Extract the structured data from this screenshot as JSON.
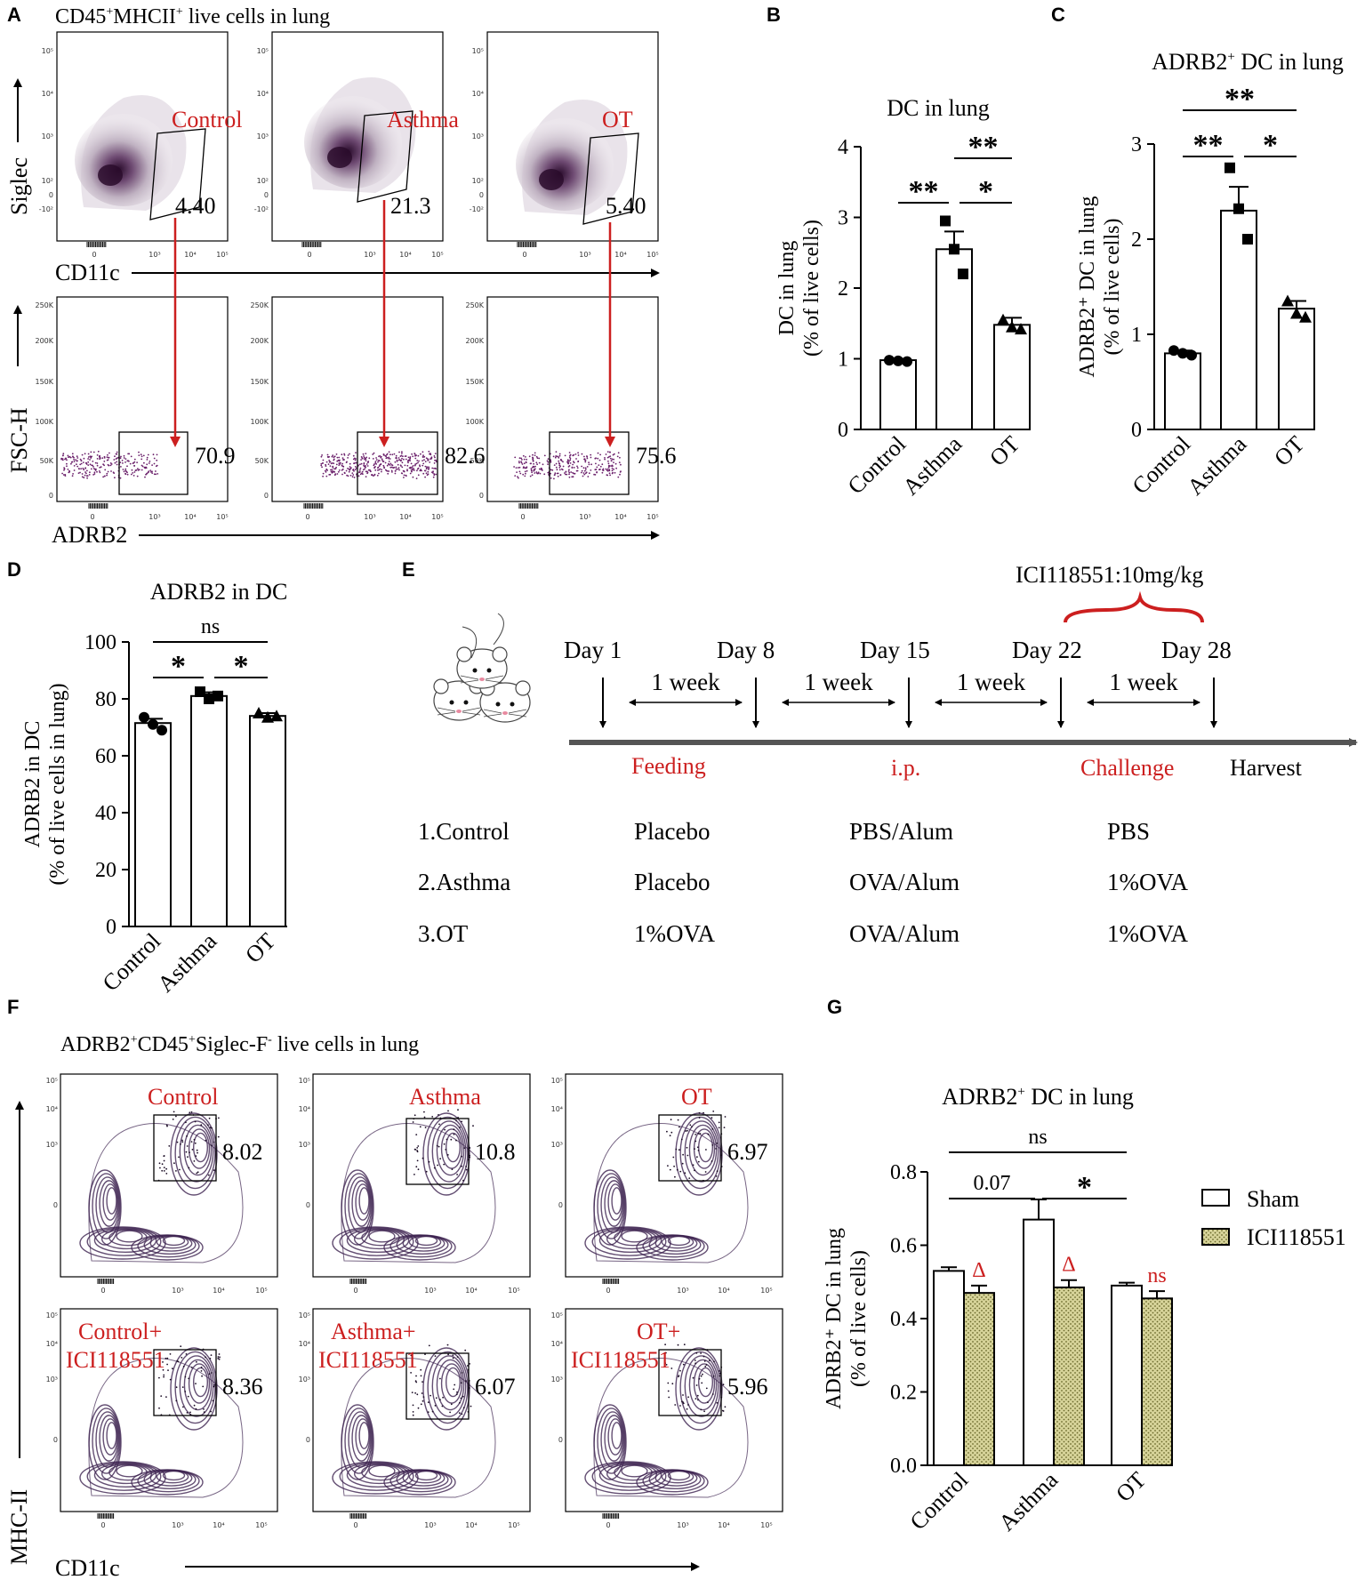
{
  "colors": {
    "red": "#cc1f1f",
    "purple": "#3d2350",
    "gray": "#555555",
    "hatch": "#c9c78a"
  },
  "panel_labels": [
    "A",
    "B",
    "C",
    "D",
    "E",
    "F",
    "G"
  ],
  "panelA": {
    "title_pre": "CD45",
    "title_sup1": "+",
    "title_mid": "MHCII",
    "title_sup2": "+",
    "title_post": " live cells in lung",
    "groups": [
      "Control",
      "Asthma",
      "OT"
    ],
    "siglec_gate": [
      "4.40",
      "21.3",
      "5.40"
    ],
    "adrb2_gate": [
      "70.9",
      "82.6",
      "75.6"
    ],
    "y_top": "Siglec",
    "x_top": "CD11c",
    "y_bottom": "FSC-H",
    "x_bottom": "ADRB2",
    "log_ticks": [
      "10⁵",
      "10⁴",
      "10³",
      "10²",
      "0",
      "-10²"
    ],
    "log_xticks": [
      "0",
      "10³",
      "10⁴",
      "10⁵"
    ],
    "lin_ticks": [
      "250K",
      "200K",
      "150K",
      "100K",
      "50K",
      "0"
    ]
  },
  "chart_data": [
    {
      "id": "B",
      "type": "bar",
      "title": "DC in lung",
      "ylabel": [
        "DC in lung",
        "(% of live cells)"
      ],
      "categories": [
        "Control",
        "Asthma",
        "OT"
      ],
      "values": [
        0.98,
        2.55,
        1.48
      ],
      "errors": [
        0.02,
        0.25,
        0.1
      ],
      "points": [
        [
          0.98,
          0.97,
          0.96
        ],
        [
          2.95,
          2.55,
          2.2
        ],
        [
          1.55,
          1.45,
          1.42
        ]
      ],
      "markers": [
        "circle",
        "square",
        "triangle"
      ],
      "yticks": [
        0,
        1,
        2,
        3,
        4
      ],
      "ylim": [
        0,
        4
      ],
      "sig": [
        {
          "label": "**",
          "from": 1,
          "to": 2,
          "row": 0
        },
        {
          "label": "**",
          "from": 0,
          "to": 1,
          "row": 1
        },
        {
          "label": "*",
          "from": 1,
          "to": 2,
          "row": 1
        }
      ]
    },
    {
      "id": "C",
      "type": "bar",
      "title_pre": "ADRB2",
      "title_sup": "+",
      "title_post": " DC in lung",
      "ylabel": [
        "ADRB2⁺ DC in lung",
        "(% of live cells)"
      ],
      "categories": [
        "Control",
        "Asthma",
        "OT"
      ],
      "values": [
        0.8,
        2.3,
        1.27
      ],
      "errors": [
        0.03,
        0.25,
        0.08
      ],
      "points": [
        [
          0.83,
          0.8,
          0.78
        ],
        [
          2.75,
          2.32,
          2.0
        ],
        [
          1.35,
          1.22,
          1.18
        ]
      ],
      "markers": [
        "circle",
        "square",
        "triangle"
      ],
      "yticks": [
        0,
        1,
        2,
        3
      ],
      "ylim": [
        0,
        3
      ],
      "sig": [
        {
          "label": "**",
          "from": 0,
          "to": 2,
          "row": 0
        },
        {
          "label": "**",
          "from": 0,
          "to": 1,
          "row": 1
        },
        {
          "label": "*",
          "from": 1,
          "to": 2,
          "row": 1
        }
      ]
    },
    {
      "id": "D",
      "type": "bar",
      "title": "ADRB2 in DC",
      "ylabel": [
        "ADRB2 in DC",
        "(% of live cells  in lung)"
      ],
      "categories": [
        "Control",
        "Asthma",
        "OT"
      ],
      "values": [
        71.5,
        81,
        74
      ],
      "errors": [
        1.5,
        1.3,
        1.0
      ],
      "points": [
        [
          73.5,
          71,
          69
        ],
        [
          82.5,
          80,
          81
        ],
        [
          75,
          73.5,
          74
        ]
      ],
      "markers": [
        "circle",
        "square",
        "triangle"
      ],
      "yticks": [
        0,
        20,
        40,
        60,
        80,
        100
      ],
      "ylim": [
        0,
        100
      ],
      "sig": [
        {
          "label": "ns",
          "from": 0,
          "to": 2,
          "row": 0
        },
        {
          "label": "*",
          "from": 0,
          "to": 1,
          "row": 1
        },
        {
          "label": "*",
          "from": 1,
          "to": 2,
          "row": 1
        }
      ]
    },
    {
      "id": "G",
      "type": "bar",
      "title_pre": "ADRB2",
      "title_sup": "+",
      "title_post": " DC in lung",
      "ylabel": [
        "ADRB2⁺ DC in lung",
        "(% of live cells)"
      ],
      "categories": [
        "Control",
        "Asthma",
        "OT"
      ],
      "series": [
        {
          "name": "Sham",
          "values": [
            0.53,
            0.67,
            0.49
          ],
          "errors": [
            0.01,
            0.055,
            0.008
          ]
        },
        {
          "name": "ICI118551",
          "values": [
            0.47,
            0.485,
            0.455
          ],
          "errors": [
            0.02,
            0.02,
            0.02
          ]
        }
      ],
      "marks": [
        "Δ",
        "Δ",
        "ns"
      ],
      "yticks": [
        "0.0",
        "0.2",
        "0.4",
        "0.6",
        "0.8"
      ],
      "ylim": [
        0,
        0.8
      ],
      "sig": [
        {
          "label": "ns",
          "from": 0,
          "to": 2,
          "row": 0
        },
        {
          "label": "0.07",
          "from": 0,
          "to": 1,
          "row": 1
        },
        {
          "label": "*",
          "from": 1,
          "to": 2,
          "row": 1
        }
      ]
    }
  ],
  "panelE": {
    "drug": "ICI118551:10mg/kg",
    "days": [
      "Day 1",
      "Day 8",
      "Day 15",
      "Day 22",
      "Day 28"
    ],
    "interval": "1 week",
    "phases": [
      "Feeding",
      "i.p.",
      "Challenge"
    ],
    "harvest": "Harvest",
    "rows": [
      [
        "1.Control",
        "Placebo",
        "PBS/Alum",
        "PBS"
      ],
      [
        "2.Asthma",
        "Placebo",
        "OVA/Alum",
        "1%OVA"
      ],
      [
        "3.OT",
        "1%OVA",
        "OVA/Alum",
        "1%OVA"
      ]
    ]
  },
  "panelF": {
    "title_a": "ADRB2",
    "title_a_sup": "+",
    "title_b": "CD45",
    "title_b_sup": "+",
    "title_c": "Siglec-F",
    "title_c_sup": "-",
    "title_d": " live cells in lung",
    "top_groups": [
      "Control",
      "Asthma",
      "OT"
    ],
    "bottom_groups_l1": [
      "Control+",
      "Asthma+",
      "OT+"
    ],
    "bottom_groups_l2": [
      "ICI118551",
      "ICI118551",
      "ICI118551"
    ],
    "top_values": [
      "8.02",
      "10.8",
      "6.97"
    ],
    "bottom_values": [
      "8.36",
      "6.07",
      "5.96"
    ],
    "y_axis": "MHC-II",
    "x_axis": "CD11c"
  }
}
